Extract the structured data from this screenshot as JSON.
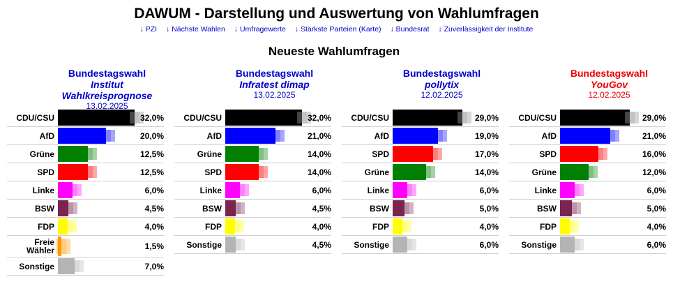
{
  "header": {
    "title": "DAWUM - Darstellung und Auswertung von Wahlumfragen",
    "nav_links": [
      "↓ PZI",
      "↓ Nächste Wahlen",
      "↓ Umfragewerte",
      "↓ Stärkste Parteien (Karte)",
      "↓ Bundesrat",
      "↓ Zuverlässigkeit der Institute"
    ],
    "section_title": "Neueste Wahlumfragen"
  },
  "colors": {
    "link": "#0000cc",
    "institute_blue": "#0000cc",
    "institute_red": "#ee0000",
    "CDU/CSU": "#000000",
    "AfD": "#0000ff",
    "Grüne": "#008000",
    "SPD": "#ff0000",
    "Linke": "#ff00ff",
    "BSW": "#7b2450",
    "FDP": "#ffff00",
    "Freie Wähler": "#ff9900",
    "Sonstige": "#b4b4b4"
  },
  "polls": [
    {
      "title": "Bundestagswahl",
      "institute": "Institut Wahlkreisprognose",
      "date": "13.02.2025",
      "header_color": "#0000cc",
      "results": [
        {
          "party": "CDU/CSU",
          "value": 32.0,
          "label": "32,0%"
        },
        {
          "party": "AfD",
          "value": 20.0,
          "label": "20,0%"
        },
        {
          "party": "Grüne",
          "value": 12.5,
          "label": "12,5%"
        },
        {
          "party": "SPD",
          "value": 12.5,
          "label": "12,5%"
        },
        {
          "party": "Linke",
          "value": 6.0,
          "label": "6,0%"
        },
        {
          "party": "BSW",
          "value": 4.5,
          "label": "4,5%"
        },
        {
          "party": "FDP",
          "value": 4.0,
          "label": "4,0%"
        },
        {
          "party": "Freie Wähler",
          "value": 1.5,
          "label": "1,5%"
        },
        {
          "party": "Sonstige",
          "value": 7.0,
          "label": "7,0%"
        }
      ]
    },
    {
      "title": "Bundestagswahl",
      "institute": "Infratest dimap",
      "date": "13.02.2025",
      "header_color": "#0000cc",
      "results": [
        {
          "party": "CDU/CSU",
          "value": 32.0,
          "label": "32,0%"
        },
        {
          "party": "AfD",
          "value": 21.0,
          "label": "21,0%"
        },
        {
          "party": "Grüne",
          "value": 14.0,
          "label": "14,0%"
        },
        {
          "party": "SPD",
          "value": 14.0,
          "label": "14,0%"
        },
        {
          "party": "Linke",
          "value": 6.0,
          "label": "6,0%"
        },
        {
          "party": "BSW",
          "value": 4.5,
          "label": "4,5%"
        },
        {
          "party": "FDP",
          "value": 4.0,
          "label": "4,0%"
        },
        {
          "party": "Sonstige",
          "value": 4.5,
          "label": "4,5%"
        }
      ]
    },
    {
      "title": "Bundestagswahl",
      "institute": "pollytix",
      "date": "12.02.2025",
      "header_color": "#0000cc",
      "results": [
        {
          "party": "CDU/CSU",
          "value": 29.0,
          "label": "29,0%"
        },
        {
          "party": "AfD",
          "value": 19.0,
          "label": "19,0%"
        },
        {
          "party": "SPD",
          "value": 17.0,
          "label": "17,0%"
        },
        {
          "party": "Grüne",
          "value": 14.0,
          "label": "14,0%"
        },
        {
          "party": "Linke",
          "value": 6.0,
          "label": "6,0%"
        },
        {
          "party": "BSW",
          "value": 5.0,
          "label": "5,0%"
        },
        {
          "party": "FDP",
          "value": 4.0,
          "label": "4,0%"
        },
        {
          "party": "Sonstige",
          "value": 6.0,
          "label": "6,0%"
        }
      ]
    },
    {
      "title": "Bundestagswahl",
      "institute": "YouGov",
      "date": "12.02.2025",
      "header_color": "#ee0000",
      "results": [
        {
          "party": "CDU/CSU",
          "value": 29.0,
          "label": "29,0%"
        },
        {
          "party": "AfD",
          "value": 21.0,
          "label": "21,0%"
        },
        {
          "party": "SPD",
          "value": 16.0,
          "label": "16,0%"
        },
        {
          "party": "Grüne",
          "value": 12.0,
          "label": "12,0%"
        },
        {
          "party": "Linke",
          "value": 6.0,
          "label": "6,0%"
        },
        {
          "party": "BSW",
          "value": 5.0,
          "label": "5,0%"
        },
        {
          "party": "FDP",
          "value": 4.0,
          "label": "4,0%"
        },
        {
          "party": "Sonstige",
          "value": 6.0,
          "label": "6,0%"
        }
      ]
    }
  ]
}
